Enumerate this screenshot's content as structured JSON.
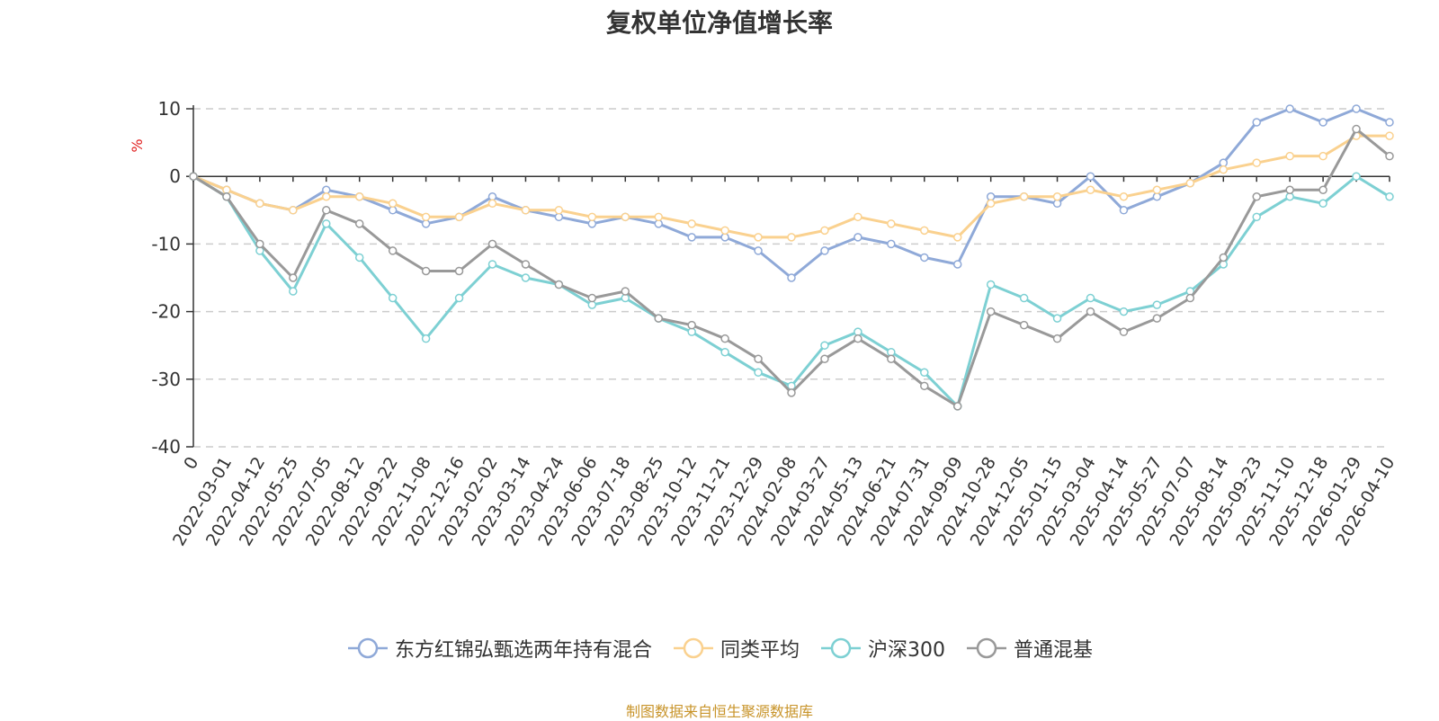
{
  "chart_data": {
    "type": "line",
    "title": "复权单位净值增长率",
    "ylabel": "%",
    "ylim": [
      -40,
      10
    ],
    "yticks": [
      10,
      0,
      -10,
      -20,
      -30,
      -40
    ],
    "grid": true,
    "legend_position": "bottom-center",
    "categories": [
      "0",
      "2022-03-01",
      "2022-04-12",
      "2022-05-25",
      "2022-07-05",
      "2022-08-12",
      "2022-09-22",
      "2022-11-08",
      "2022-12-16",
      "2023-02-02",
      "2023-03-14",
      "2023-04-24",
      "2023-06-06",
      "2023-07-18",
      "2023-08-25",
      "2023-10-12",
      "2023-11-21",
      "2023-12-29",
      "2024-02-08",
      "2024-03-27",
      "2024-05-13",
      "2024-06-21",
      "2024-07-31",
      "2024-09-09",
      "2024-10-28",
      "2024-12-05",
      "2025-01-15",
      "2025-03-04",
      "2025-04-14",
      "2025-05-27",
      "2025-07-07",
      "2025-08-14",
      "2025-09-23",
      "2025-11-10",
      "2025-12-18",
      "2026-01-29",
      "2026-04-10"
    ],
    "series": [
      {
        "name": "东方红锦弘甄选两年持有混合",
        "color": "#8fa9d8",
        "values": [
          0,
          -2,
          -4,
          -5,
          -2,
          -3,
          -5,
          -7,
          -6,
          -3,
          -5,
          -6,
          -7,
          -6,
          -7,
          -9,
          -9,
          -11,
          -15,
          -11,
          -9,
          -10,
          -12,
          -13,
          -3,
          -3,
          -4,
          0,
          -5,
          -3,
          -1,
          2,
          8,
          10,
          8,
          10,
          8
        ]
      },
      {
        "name": "同类平均",
        "color": "#fad18f",
        "values": [
          0,
          -2,
          -4,
          -5,
          -3,
          -3,
          -4,
          -6,
          -6,
          -4,
          -5,
          -5,
          -6,
          -6,
          -6,
          -7,
          -8,
          -9,
          -9,
          -8,
          -6,
          -7,
          -8,
          -9,
          -4,
          -3,
          -3,
          -2,
          -3,
          -2,
          -1,
          1,
          2,
          3,
          3,
          6,
          6
        ]
      },
      {
        "name": "沪深300",
        "color": "#7dd0d3",
        "values": [
          0,
          -3,
          -11,
          -17,
          -7,
          -12,
          -18,
          -24,
          -18,
          -13,
          -15,
          -16,
          -19,
          -18,
          -21,
          -23,
          -26,
          -29,
          -31,
          -25,
          -23,
          -26,
          -29,
          -34,
          -16,
          -18,
          -21,
          -18,
          -20,
          -19,
          -17,
          -13,
          -6,
          -3,
          -4,
          0,
          -3
        ]
      },
      {
        "name": "普通混基",
        "color": "#999999",
        "values": [
          0,
          -3,
          -10,
          -15,
          -5,
          -7,
          -11,
          -14,
          -14,
          -10,
          -13,
          -16,
          -18,
          -17,
          -21,
          -22,
          -24,
          -27,
          -32,
          -27,
          -24,
          -27,
          -31,
          -34,
          -20,
          -22,
          -24,
          -20,
          -23,
          -21,
          -18,
          -12,
          -3,
          -2,
          -2,
          7,
          3
        ]
      }
    ]
  },
  "legend": [
    {
      "label": "东方红锦弘甄选两年持有混合",
      "color": "#8fa9d8"
    },
    {
      "label": "同类平均",
      "color": "#fad18f"
    },
    {
      "label": "沪深300",
      "color": "#7dd0d3"
    },
    {
      "label": "普通混基",
      "color": "#999999"
    }
  ],
  "footer": {
    "source": "制图数据来自恒生聚源数据库"
  }
}
